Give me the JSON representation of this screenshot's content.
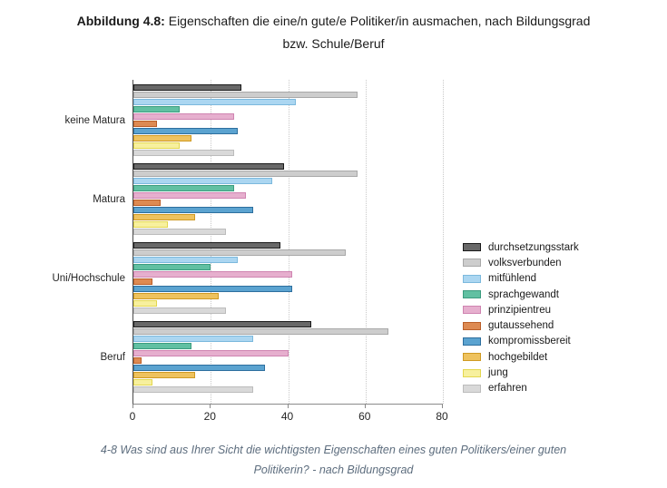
{
  "title": {
    "bold": "Abbildung 4.8:",
    "rest": " Eigenschaften die eine/n gute/e Politiker/in ausmachen, nach Bildungsgrad",
    "line2": "bzw. Schule/Beruf"
  },
  "caption": {
    "line1": "4-8 Was sind aus Ihrer Sicht die wichtigsten Eigenschaften eines guten Politikers/einer guten",
    "line2": "Politikerin? - nach Bildungsgrad"
  },
  "chart_data": {
    "type": "bar",
    "orientation": "horizontal",
    "title": "Eigenschaften die eine/n gute/e Politiker/in ausmachen, nach Bildungsgrad bzw. Schule/Beruf",
    "categories": [
      "keine Matura",
      "Matura",
      "Uni/Hochschule",
      "Beruf"
    ],
    "series": [
      {
        "name": "durchsetzungsstark",
        "color": "#686868",
        "border": "#1a1a1a",
        "values": [
          28,
          39,
          38,
          46
        ]
      },
      {
        "name": "volksverbunden",
        "color": "#cdcdcd",
        "border": "#a8a8a8",
        "values": [
          58,
          58,
          55,
          66
        ]
      },
      {
        "name": "mitfühlend",
        "color": "#abd6f1",
        "border": "#7cb9dd",
        "values": [
          42,
          36,
          27,
          31
        ]
      },
      {
        "name": "sprachgewandt",
        "color": "#61c0a2",
        "border": "#3c9c7f",
        "values": [
          12,
          26,
          20,
          15
        ]
      },
      {
        "name": "prinzipientreu",
        "color": "#e6afce",
        "border": "#cf84b1",
        "values": [
          26,
          29,
          41,
          40
        ]
      },
      {
        "name": "gutaussehend",
        "color": "#dd8a52",
        "border": "#ba5e28",
        "values": [
          6,
          7,
          5,
          2
        ]
      },
      {
        "name": "kompromissbereit",
        "color": "#5ba3d0",
        "border": "#2e6f9e",
        "values": [
          27,
          31,
          41,
          34
        ]
      },
      {
        "name": "hochgebildet",
        "color": "#eec25e",
        "border": "#cf9a23",
        "values": [
          15,
          16,
          22,
          16
        ]
      },
      {
        "name": "jung",
        "color": "#f7f09e",
        "border": "#e3d74f",
        "values": [
          12,
          9,
          6,
          5
        ]
      },
      {
        "name": "erfahren",
        "color": "#d9d9d9",
        "border": "#bcbcbc",
        "values": [
          26,
          24,
          24,
          31
        ]
      }
    ],
    "xlim": [
      0,
      80
    ],
    "xticks": [
      0,
      20,
      40,
      60,
      80
    ],
    "grid": "vertical-dotted",
    "legend_position": "right"
  }
}
